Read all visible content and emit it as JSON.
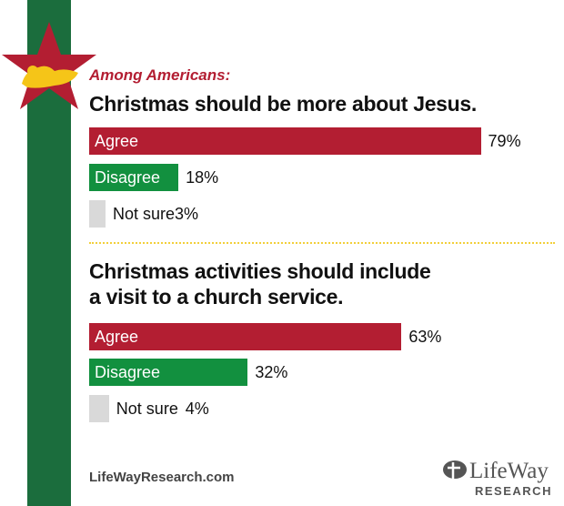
{
  "subtitle": "Among Americans:",
  "footer_url": "LifeWayResearch.com",
  "logo": {
    "name": "LifeWay",
    "tagline": "RESEARCH"
  },
  "colors": {
    "agree": "#b31e32",
    "disagree": "#12903f",
    "not_sure": "#d9d9d9",
    "stripe": "#1b6d3d",
    "star": "#b31e32"
  },
  "chart_data": [
    {
      "type": "bar",
      "orientation": "horizontal",
      "title": "Christmas should be more about Jesus.",
      "categories": [
        "Agree",
        "Disagree",
        "Not sure"
      ],
      "values": [
        79,
        18,
        3
      ],
      "labels": [
        "79%",
        "18%",
        "3%"
      ],
      "xlim": [
        0,
        100
      ]
    },
    {
      "type": "bar",
      "orientation": "horizontal",
      "title_lines": [
        "Christmas activities should include",
        "a visit to a church service."
      ],
      "categories": [
        "Agree",
        "Disagree",
        "Not sure"
      ],
      "values": [
        63,
        32,
        4
      ],
      "labels": [
        "63%",
        "32%",
        "4%"
      ],
      "xlim": [
        0,
        100
      ]
    }
  ]
}
